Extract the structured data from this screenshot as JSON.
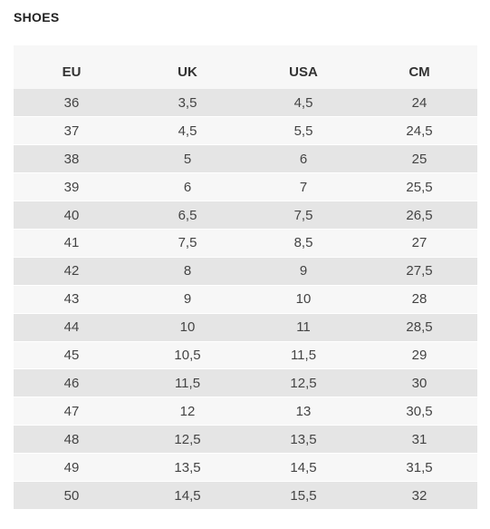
{
  "title": "SHOES",
  "table": {
    "headers": [
      "EU",
      "UK",
      "USA",
      "CM"
    ],
    "rows": [
      [
        "36",
        "3,5",
        "4,5",
        "24"
      ],
      [
        "37",
        "4,5",
        "5,5",
        "24,5"
      ],
      [
        "38",
        "5",
        "6",
        "25"
      ],
      [
        "39",
        "6",
        "7",
        "25,5"
      ],
      [
        "40",
        "6,5",
        "7,5",
        "26,5"
      ],
      [
        "41",
        "7,5",
        "8,5",
        "27"
      ],
      [
        "42",
        "8",
        "9",
        "27,5"
      ],
      [
        "43",
        "9",
        "10",
        "28"
      ],
      [
        "44",
        "10",
        "11",
        "28,5"
      ],
      [
        "45",
        "10,5",
        "11,5",
        "29"
      ],
      [
        "46",
        "11,5",
        "12,5",
        "30"
      ],
      [
        "47",
        "12",
        "13",
        "30,5"
      ],
      [
        "48",
        "12,5",
        "13,5",
        "31"
      ],
      [
        "49",
        "13,5",
        "14,5",
        "31,5"
      ],
      [
        "50",
        "14,5",
        "15,5",
        "32"
      ]
    ]
  }
}
